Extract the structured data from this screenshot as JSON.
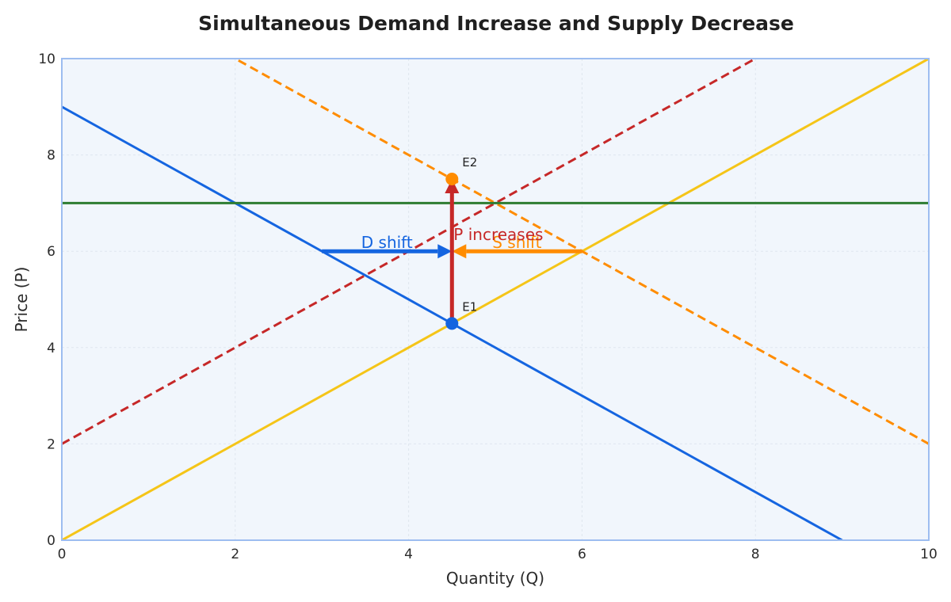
{
  "chart_data": {
    "type": "line",
    "title": "Simultaneous Demand Increase and Supply Decrease",
    "xlabel": "Quantity (Q)",
    "ylabel": "Price (P)",
    "xlim": [
      0,
      10
    ],
    "ylim": [
      0,
      10
    ],
    "xticks": [
      "0",
      "2",
      "4",
      "6",
      "8",
      "10"
    ],
    "yticks": [
      "0",
      "2",
      "4",
      "6",
      "8",
      "10"
    ],
    "grid": true,
    "background_color": "#f1f6fc",
    "frame_color": "#9dbdf0",
    "series": [
      {
        "x": [
          0,
          9
        ],
        "y": [
          9,
          0
        ],
        "color": "#1565e0",
        "dash": false
      },
      {
        "x": [
          0,
          10
        ],
        "y": [
          0,
          10
        ],
        "color": "#f5c518",
        "dash": false
      },
      {
        "x": [
          0,
          10
        ],
        "y": [
          12,
          2
        ],
        "color": "#ff8c00",
        "dash": true
      },
      {
        "x": [
          0,
          10
        ],
        "y": [
          2,
          12
        ],
        "color": "#c62828",
        "dash": true
      },
      {
        "x": [
          0,
          10
        ],
        "y": [
          7,
          7
        ],
        "color": "#2e7d32",
        "dash": false
      }
    ],
    "points": [
      {
        "label": "E1",
        "x": 4.5,
        "y": 4.5,
        "color": "#1565e0"
      },
      {
        "label": "E2",
        "x": 4.5,
        "y": 7.5,
        "color": "#ff8c00"
      }
    ],
    "arrows": [
      {
        "label": "D shift",
        "from": [
          3,
          6
        ],
        "to": [
          4.5,
          6
        ],
        "color": "#1565e0"
      },
      {
        "label": "S shift",
        "from": [
          6,
          6
        ],
        "to": [
          4.5,
          6
        ],
        "color": "#ff8c00"
      },
      {
        "label": "P increases",
        "from": [
          4.5,
          4.5
        ],
        "to": [
          4.5,
          7.5
        ],
        "color": "#c62828"
      }
    ]
  }
}
